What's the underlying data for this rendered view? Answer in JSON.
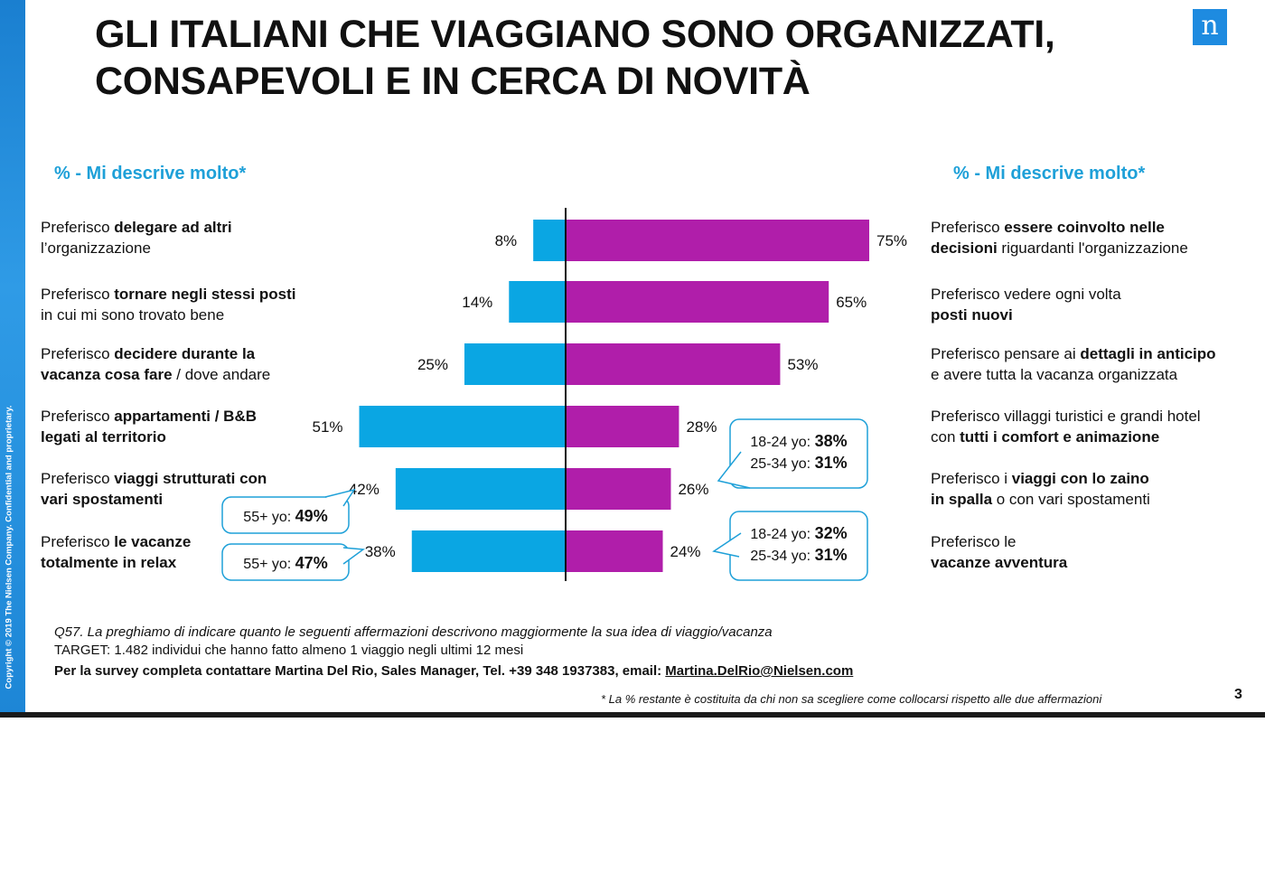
{
  "title": {
    "line1": "GLI ITALIANI CHE VIAGGIANO SONO ORGANIZZATI,",
    "line2": "CONSAPEVOLI E IN CERCA DI NOVITÀ"
  },
  "logo": "n",
  "copyright": "Copyright © 2019 The Nielsen Company. Confidential and proprietary.",
  "left_header": "% - Mi descrive molto*",
  "right_header": "% - Mi descrive molto*",
  "statements_left": [
    {
      "pre": "Preferisco ",
      "bold": "delegare ad altri",
      "br": true,
      "post": "l’organizzazione"
    },
    {
      "pre": "Preferisco ",
      "bold": "tornare negli stessi posti",
      "br": true,
      "post": "in cui mi sono trovato bene"
    },
    {
      "pre": "Preferisco ",
      "bold": "decidere durante la",
      "br": true,
      "bold2": "vacanza cosa fare",
      "post": " / dove andare"
    },
    {
      "pre": "Preferisco ",
      "bold": "appartamenti / B&B",
      "br": true,
      "bold2": "legati al territorio",
      "post": ""
    },
    {
      "pre": "Preferisco ",
      "bold": "viaggi strutturati con",
      "br": true,
      "bold2": "vari spostamenti",
      "post": ""
    },
    {
      "pre": "Preferisco ",
      "bold": "le vacanze",
      "br": true,
      "bold2": "totalmente in relax",
      "post": ""
    }
  ],
  "statements_right": [
    {
      "pre": "Preferisco ",
      "bold": "essere coinvolto nelle",
      "br": true,
      "bold2": "decisioni",
      "post": " riguardanti l'organizzazione"
    },
    {
      "pre": "Preferisco vedere ogni volta",
      "bold": "",
      "br": true,
      "bold2": "posti nuovi",
      "post": ""
    },
    {
      "pre": "Preferisco pensare ai ",
      "bold": "dettagli in anticipo",
      "br": true,
      "post": "e avere tutta la vacanza organizzata"
    },
    {
      "pre": "Preferisco villaggi turistici e grandi hotel",
      "bold": "",
      "br": true,
      "pre2": "con ",
      "bold2": "tutti i comfort e animazione",
      "post": ""
    },
    {
      "pre": "Preferisco i ",
      "bold": "viaggi con lo zaino",
      "br": true,
      "bold2": "in spalla",
      "post": " o con vari spostamenti"
    },
    {
      "pre": "Preferisco le",
      "bold": "",
      "br": true,
      "bold2": "vacanze avventura",
      "post": ""
    }
  ],
  "chart_data": {
    "type": "bar",
    "orientation": "diverging-horizontal",
    "series": [
      {
        "name": "",
        "color": "#0aa6e3",
        "values": [
          8,
          14,
          25,
          51,
          42,
          38
        ]
      },
      {
        "name": "",
        "color": "#b01eaa",
        "values": [
          75,
          65,
          53,
          28,
          26,
          24
        ]
      }
    ],
    "left_labels": [
      "8%",
      "14%",
      "25%",
      "51%",
      "42%",
      "38%"
    ],
    "right_labels": [
      "75%",
      "65%",
      "53%",
      "28%",
      "26%",
      "24%"
    ],
    "callouts": [
      {
        "row": 3,
        "side": "right",
        "lines": [
          {
            "label": "18-24 yo: ",
            "value": "38%"
          },
          {
            "label": "25-34 yo: ",
            "value": "31%"
          }
        ]
      },
      {
        "row": 4,
        "side": "left",
        "lines": [
          {
            "label": "55+ yo: ",
            "value": "49%"
          }
        ]
      },
      {
        "row": 5,
        "side": "left",
        "lines": [
          {
            "label": "55+ yo: ",
            "value": "47%"
          }
        ]
      },
      {
        "row": 5,
        "side": "right",
        "lines": [
          {
            "label": "18-24 yo: ",
            "value": "32%"
          },
          {
            "label": "25-34 yo: ",
            "value": "31%"
          }
        ]
      }
    ]
  },
  "footer": {
    "question": "Q57. La preghiamo di indicare quanto le seguenti affermazioni descrivono maggiormente la sua idea di viaggio/vacanza",
    "target": "TARGET: 1.482 individui che hanno fatto almeno 1 viaggio negli ultimi 12 mesi",
    "contact": "Per la survey completa contattare Martina Del Rio, Sales Manager, Tel. +39 348 1937383, email: ",
    "email": "Martina.DelRio@Nielsen.com"
  },
  "note": "* La % restante è costituita da chi non sa scegliere come collocarsi rispetto alle due  affermazioni",
  "page_number": "3"
}
